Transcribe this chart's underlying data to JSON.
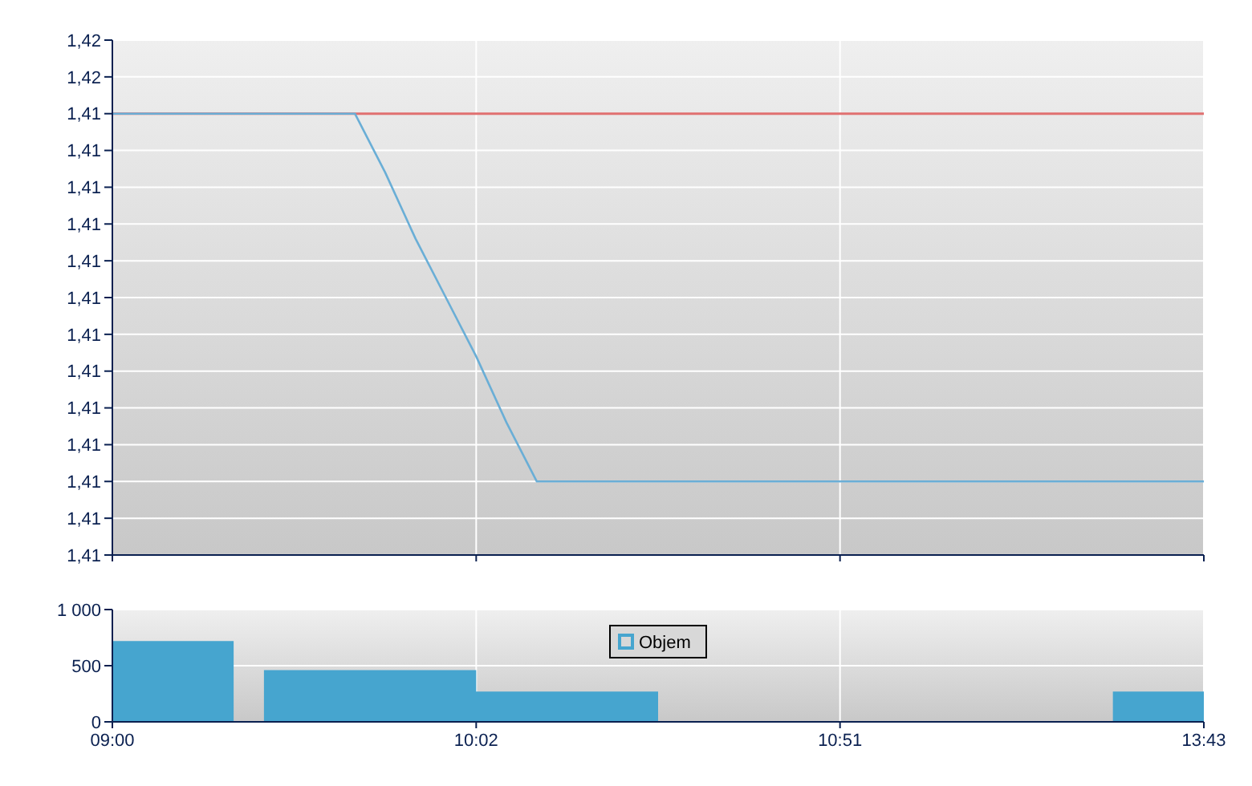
{
  "chart_data": [
    {
      "type": "line",
      "categories": [
        null,
        null,
        null,
        null,
        null,
        null,
        null,
        null,
        null,
        null,
        null,
        null,
        null,
        null,
        null,
        null,
        null,
        null,
        null,
        null,
        null,
        null,
        null,
        null,
        null,
        null,
        null,
        null,
        null,
        null,
        null,
        null,
        null,
        null,
        null,
        null,
        null
      ],
      "series": [
        {
          "color": "#6aaed6",
          "values": [
            1.415,
            1.415,
            1.415,
            1.415,
            1.415,
            1.415,
            1.415,
            1.415,
            1.415,
            1.4142,
            1.4133,
            1.4125,
            1.4117,
            1.4108,
            1.41,
            1.41,
            1.41,
            1.41,
            1.41,
            1.41,
            1.41,
            1.41,
            1.41,
            1.41,
            1.41,
            1.41,
            1.41,
            1.41,
            1.41,
            1.41,
            1.41,
            1.41,
            1.41,
            1.41,
            1.41,
            1.41,
            1.41
          ]
        }
      ],
      "ylim": [
        1.409,
        1.416
      ],
      "yticks": [
        {
          "value": 1.409,
          "label": "1,41"
        },
        {
          "value": 1.4095,
          "label": "1,41"
        },
        {
          "value": 1.41,
          "label": "1,41"
        },
        {
          "value": 1.4105,
          "label": "1,41"
        },
        {
          "value": 1.411,
          "label": "1,41"
        },
        {
          "value": 1.4115,
          "label": "1,41"
        },
        {
          "value": 1.412,
          "label": "1,41"
        },
        {
          "value": 1.4125,
          "label": "1,41"
        },
        {
          "value": 1.413,
          "label": "1,41"
        },
        {
          "value": 1.4135,
          "label": "1,41"
        },
        {
          "value": 1.414,
          "label": "1,41"
        },
        {
          "value": 1.4145,
          "label": "1,41"
        },
        {
          "value": 1.415,
          "label": "1,41"
        },
        {
          "value": 1.4155,
          "label": "1,42"
        },
        {
          "value": 1.416,
          "label": "1,42"
        }
      ],
      "grid": true,
      "tick_labels": "y",
      "ref_lines": [
        {
          "axis": "y",
          "value": 1.415,
          "color": "#e07070"
        }
      ]
    },
    {
      "type": "area",
      "categories": [
        "09:00",
        null,
        null,
        null,
        null,
        null,
        null,
        null,
        null,
        null,
        null,
        null,
        "10:02",
        null,
        null,
        null,
        null,
        null,
        null,
        null,
        null,
        null,
        null,
        null,
        "10:51",
        null,
        null,
        null,
        null,
        null,
        null,
        null,
        null,
        null,
        null,
        null,
        "13:43"
      ],
      "series": [
        {
          "name": "Objem",
          "color": "#46a5cf",
          "values": [
            720,
            720,
            720,
            720,
            0,
            460,
            460,
            460,
            460,
            460,
            460,
            460,
            270,
            270,
            270,
            270,
            270,
            270,
            0,
            0,
            0,
            0,
            0,
            0,
            0,
            0,
            0,
            0,
            0,
            0,
            0,
            0,
            0,
            270,
            270,
            270,
            270
          ]
        }
      ],
      "ylim": [
        0,
        1000
      ],
      "yticks": [
        0,
        500,
        {
          "value": 1000,
          "label": "1 000"
        }
      ],
      "grid": true,
      "legend": "top"
    }
  ]
}
